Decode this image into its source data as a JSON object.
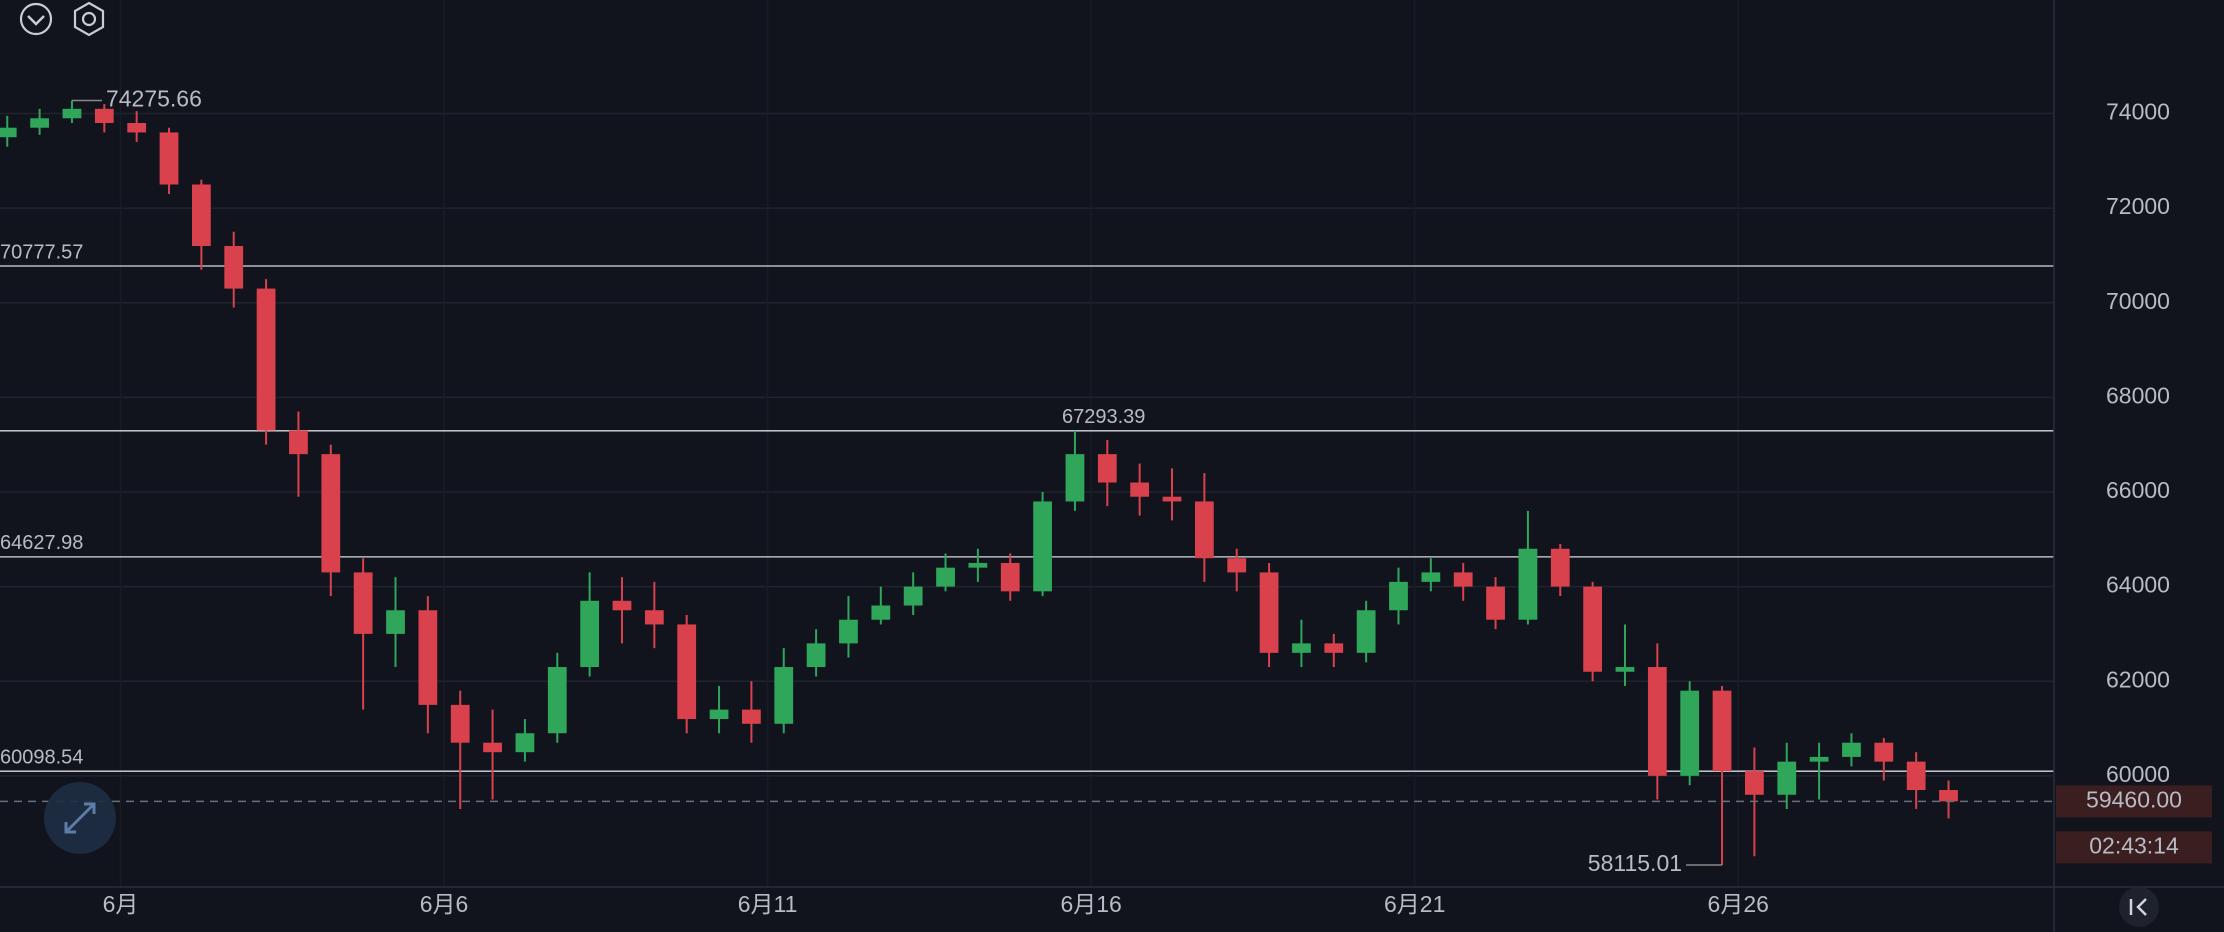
{
  "chart_data": {
    "type": "candlestick",
    "x": [
      -0.75,
      -0.25,
      0.25,
      0.75,
      1.25,
      1.75,
      2.25,
      2.75,
      3.25,
      3.75,
      4.25,
      4.75,
      5.25,
      5.75,
      6.25,
      6.75,
      7.25,
      7.75,
      8.25,
      8.75,
      9.25,
      9.75,
      10.25,
      10.75,
      11.25,
      11.75,
      12.25,
      12.75,
      13.25,
      13.75,
      14.25,
      14.75,
      15.25,
      15.75,
      16.25,
      16.75,
      17.25,
      17.75,
      18.25,
      18.75,
      19.25,
      19.75,
      20.25,
      20.75,
      21.25,
      21.75,
      22.25,
      22.75,
      23.25,
      23.75,
      24.25,
      24.75,
      25.25,
      25.75,
      26.25,
      26.75,
      27.25,
      27.75,
      28.25,
      28.75,
      29.25
    ],
    "open": [
      73500,
      73700,
      73900,
      74100,
      73800,
      73600,
      72500,
      71200,
      70300,
      67300,
      66800,
      64300,
      63000,
      63500,
      61500,
      60700,
      60500,
      60900,
      62300,
      63700,
      63500,
      63200,
      61200,
      61400,
      61100,
      62300,
      62800,
      63300,
      63600,
      64000,
      64400,
      64500,
      63900,
      65800,
      66800,
      66200,
      65900,
      65800,
      64600,
      64300,
      62600,
      62800,
      62600,
      63500,
      64100,
      64300,
      64000,
      63300,
      64800,
      64000,
      62200,
      62300,
      60000,
      61800,
      60100,
      59600,
      60300,
      60400,
      60700,
      60300,
      59700
    ],
    "high": [
      73950,
      74100,
      74275.66,
      74200,
      74050,
      73700,
      72600,
      71500,
      70500,
      67700,
      67000,
      64600,
      64200,
      63800,
      61800,
      61400,
      61200,
      62600,
      64300,
      64200,
      64100,
      63400,
      61900,
      62000,
      62700,
      63100,
      63800,
      64000,
      64300,
      64700,
      64800,
      64700,
      66000,
      67293.39,
      67100,
      66600,
      66500,
      66400,
      64800,
      64500,
      63300,
      63000,
      63700,
      64400,
      64600,
      64500,
      64200,
      65600,
      64900,
      64100,
      63200,
      62800,
      62000,
      61900,
      60600,
      60700,
      60700,
      60900,
      60800,
      60500,
      59900
    ],
    "low": [
      73300,
      73550,
      73800,
      73600,
      73400,
      72300,
      70700,
      69900,
      67000,
      65900,
      63800,
      61400,
      62300,
      60900,
      59300,
      59500,
      60300,
      60700,
      62100,
      62800,
      62700,
      60900,
      60900,
      60700,
      60900,
      62100,
      62500,
      63200,
      63400,
      63900,
      64100,
      63700,
      63800,
      65600,
      65700,
      65500,
      65400,
      64100,
      63900,
      62300,
      62300,
      62300,
      62400,
      63200,
      63900,
      63700,
      63100,
      63200,
      63800,
      62000,
      61900,
      59500,
      59800,
      58115.01,
      58300,
      59300,
      59500,
      60200,
      59900,
      59300,
      59100
    ],
    "close": [
      73700,
      73900,
      74100,
      73800,
      73600,
      72500,
      71200,
      70300,
      67300,
      66800,
      64300,
      63000,
      63500,
      61500,
      60700,
      60500,
      60900,
      62300,
      63700,
      63500,
      63200,
      61200,
      61400,
      61100,
      62300,
      62800,
      63300,
      63600,
      64000,
      64400,
      64500,
      63900,
      65800,
      66800,
      66200,
      65900,
      65800,
      64600,
      64300,
      62600,
      62800,
      62600,
      63500,
      64100,
      64300,
      64000,
      63300,
      64800,
      64000,
      62200,
      62300,
      60000,
      61800,
      60100,
      59600,
      60300,
      60400,
      60700,
      60300,
      59700,
      59460
    ],
    "up_color": "#2fa65a",
    "down_color": "#d9424c",
    "xlim": [
      -0.862,
      30.88
    ],
    "xticks": [
      {
        "value": 1,
        "label": "6月"
      },
      {
        "value": 6,
        "label": "6月6"
      },
      {
        "value": 11,
        "label": "6月11"
      },
      {
        "value": 16,
        "label": "6月16"
      },
      {
        "value": 21,
        "label": "6月21"
      },
      {
        "value": 26,
        "label": "6月26"
      }
    ],
    "ylim": [
      57650,
      76400
    ],
    "yticks": [
      60000,
      62000,
      64000,
      66000,
      68000,
      70000,
      72000,
      74000
    ],
    "grid": true,
    "price_lines": [
      70777.57,
      67293.39,
      64627.98,
      60098.54
    ],
    "max_label": 74275.66,
    "min_label": 58115.01,
    "last_price": {
      "value": 59460,
      "label": "59460.00"
    },
    "countdown": "02:43:14"
  }
}
